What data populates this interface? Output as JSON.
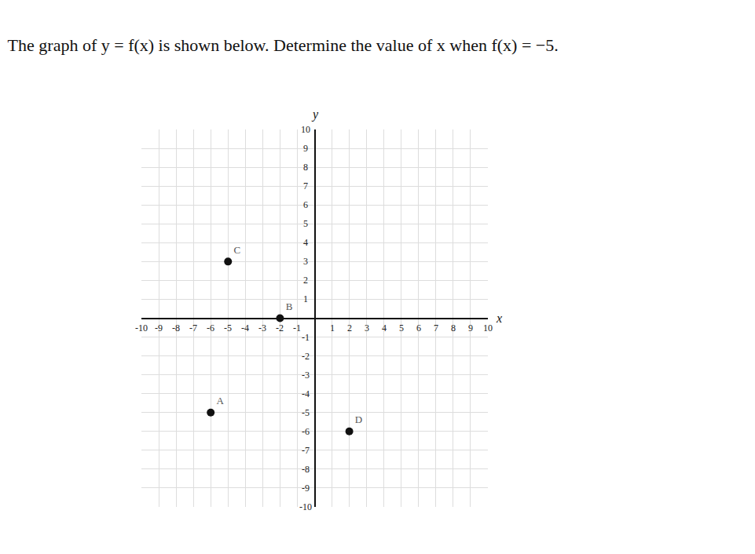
{
  "chart_data": {
    "type": "scatter",
    "title": "The graph of y = f(x) is shown below. Determine the value of x when f(x) = −5.",
    "x_label": "x",
    "y_label": "y",
    "x": [
      -6,
      -2,
      -5,
      2
    ],
    "values": [
      -5,
      0,
      3,
      -6
    ],
    "point_labels": [
      "A",
      "B",
      "C",
      "D"
    ],
    "color": "#111111",
    "marker": "circle",
    "grid": true,
    "xlim": [
      -10,
      10
    ],
    "ylim": [
      -10,
      10
    ],
    "xticks": [
      -10,
      -9,
      -8,
      -7,
      -6,
      -5,
      -4,
      -3,
      -2,
      -1,
      1,
      2,
      3,
      4,
      5,
      6,
      7,
      8,
      9,
      10
    ],
    "yticks": [
      -10,
      -9,
      -8,
      -7,
      -6,
      -5,
      -4,
      -3,
      -2,
      -1,
      1,
      2,
      3,
      4,
      5,
      6,
      7,
      8,
      9,
      10
    ]
  }
}
